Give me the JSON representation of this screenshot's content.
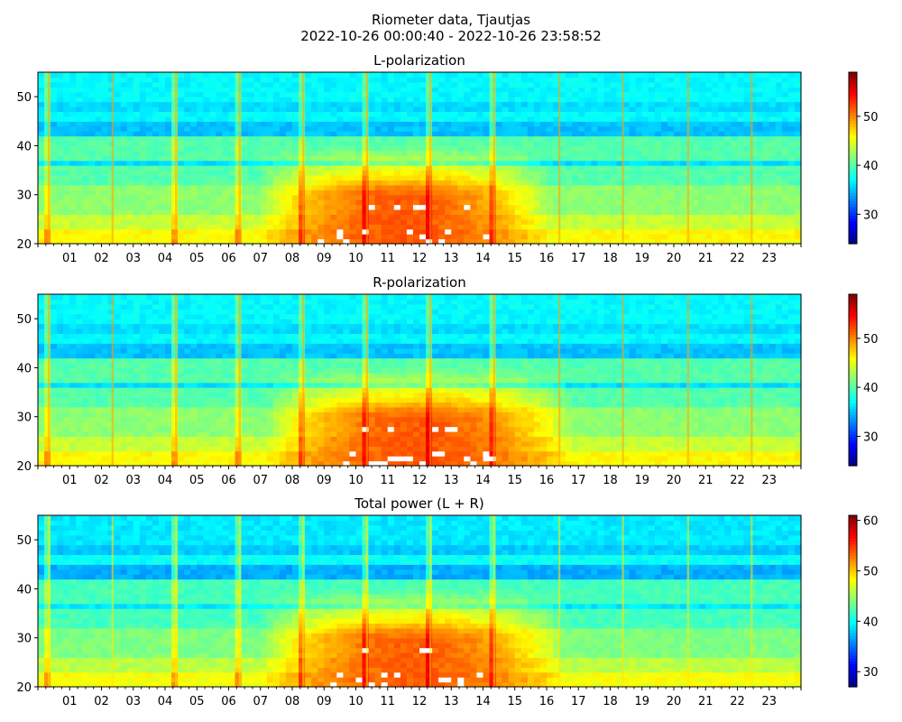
{
  "figure": {
    "title_line1": "Riometer data, Tjautjas",
    "title_line2": "2022-10-26 00:00:40 - 2022-10-26 23:58:52"
  },
  "chart_data": [
    {
      "type": "heatmap",
      "title": "L-polarization",
      "x": {
        "hours_shown": [
          "01",
          "02",
          "03",
          "04",
          "05",
          "06",
          "07",
          "08",
          "09",
          "10",
          "11",
          "12",
          "13",
          "14",
          "15",
          "16",
          "17",
          "18",
          "19",
          "20",
          "21",
          "22",
          "23"
        ],
        "range": [
          0,
          24
        ]
      },
      "ylim": [
        20,
        55
      ],
      "yticks": [
        20,
        30,
        40,
        50
      ],
      "colorbar": {
        "range": [
          24,
          59
        ],
        "ticks": [
          30,
          40,
          50
        ]
      },
      "colormap": "jet",
      "features": {
        "bands_y": [
          [
            20,
            23,
            46
          ],
          [
            23,
            26,
            44
          ],
          [
            26,
            32,
            42
          ],
          [
            32,
            36,
            40
          ],
          [
            36,
            37,
            36
          ],
          [
            37,
            42,
            40
          ],
          [
            42,
            45,
            35
          ],
          [
            45,
            47,
            37
          ],
          [
            47,
            49,
            36
          ],
          [
            49,
            55,
            37
          ]
        ],
        "daytime_peak": {
          "center_hour": 11.5,
          "extent_hours": [
            6.5,
            15.5
          ],
          "peak_y_range": [
            20,
            30
          ],
          "peak_value": 52
        },
        "vertical_streak_hours": [
          0.35,
          2.35,
          4.35,
          6.35,
          8.35,
          10.35,
          12.35,
          14.35,
          16.4,
          18.4,
          20.45,
          22.45
        ]
      }
    },
    {
      "type": "heatmap",
      "title": "R-polarization",
      "x": {
        "hours_shown": [
          "01",
          "02",
          "03",
          "04",
          "05",
          "06",
          "07",
          "08",
          "09",
          "10",
          "11",
          "12",
          "13",
          "14",
          "15",
          "16",
          "17",
          "18",
          "19",
          "20",
          "21",
          "22",
          "23"
        ],
        "range": [
          0,
          24
        ]
      },
      "ylim": [
        20,
        55
      ],
      "yticks": [
        20,
        30,
        40,
        50
      ],
      "colorbar": {
        "range": [
          24,
          59
        ],
        "ticks": [
          30,
          40,
          50
        ]
      },
      "colormap": "jet",
      "features": {
        "bands_y": [
          [
            20,
            23,
            46
          ],
          [
            23,
            26,
            44
          ],
          [
            26,
            32,
            42
          ],
          [
            32,
            36,
            40
          ],
          [
            36,
            37,
            36
          ],
          [
            37,
            42,
            40
          ],
          [
            42,
            45,
            35
          ],
          [
            45,
            47,
            37
          ],
          [
            47,
            49,
            36
          ],
          [
            49,
            55,
            37
          ]
        ],
        "daytime_peak": {
          "center_hour": 12.0,
          "extent_hours": [
            6.5,
            16.0
          ],
          "peak_y_range": [
            20,
            30
          ],
          "peak_value": 52
        },
        "vertical_streak_hours": [
          0.35,
          2.35,
          4.35,
          6.35,
          8.35,
          10.35,
          12.35,
          14.35,
          16.4,
          18.4,
          20.45,
          22.45
        ]
      }
    },
    {
      "type": "heatmap",
      "title": "Total power (L + R)",
      "x": {
        "hours_shown": [
          "01",
          "02",
          "03",
          "04",
          "05",
          "06",
          "07",
          "08",
          "09",
          "10",
          "11",
          "12",
          "13",
          "14",
          "15",
          "16",
          "17",
          "18",
          "19",
          "20",
          "21",
          "22",
          "23"
        ],
        "range": [
          0,
          24
        ]
      },
      "ylim": [
        20,
        55
      ],
      "yticks": [
        20,
        30,
        40,
        50
      ],
      "colorbar": {
        "range": [
          27,
          61
        ],
        "ticks": [
          30,
          40,
          50,
          60
        ]
      },
      "colormap": "jet",
      "features": {
        "bands_y": [
          [
            20,
            23,
            48
          ],
          [
            23,
            26,
            46
          ],
          [
            26,
            32,
            44
          ],
          [
            32,
            36,
            42
          ],
          [
            36,
            37,
            39
          ],
          [
            37,
            42,
            42
          ],
          [
            42,
            45,
            37
          ],
          [
            45,
            47,
            40
          ],
          [
            47,
            49,
            38
          ],
          [
            49,
            55,
            39
          ]
        ],
        "daytime_peak": {
          "center_hour": 11.8,
          "extent_hours": [
            6.5,
            16.0
          ],
          "peak_y_range": [
            20,
            30
          ],
          "peak_value": 54
        },
        "vertical_streak_hours": [
          0.35,
          2.35,
          4.35,
          6.35,
          8.35,
          10.35,
          12.35,
          14.35,
          16.4,
          18.4,
          20.45,
          22.45
        ]
      }
    }
  ]
}
